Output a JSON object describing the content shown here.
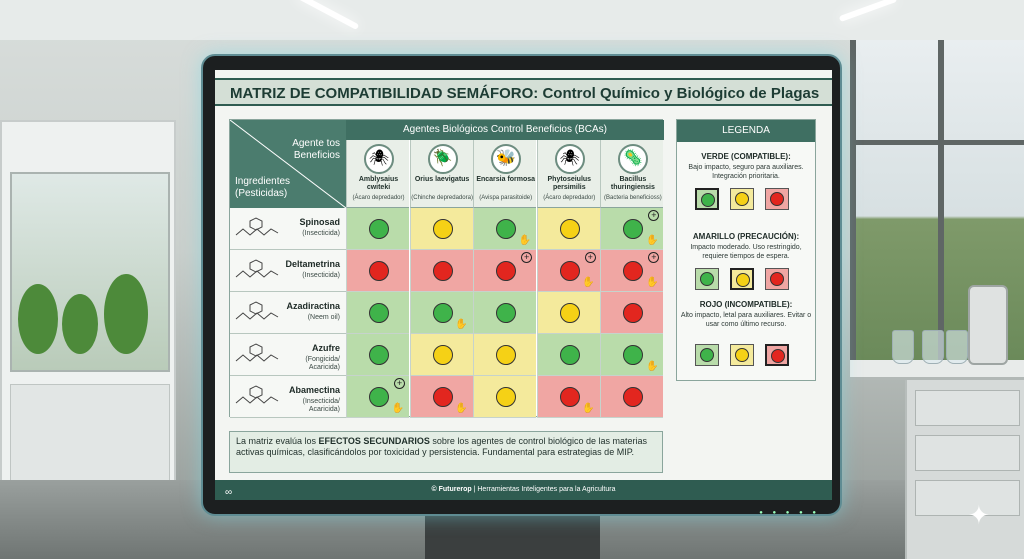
{
  "title": "MATRIZ DE COMPATIBILIDAD SEMÁFORO: Control Químico y Biológico de Plagas",
  "corner": {
    "top": "Agente tos Beneficios",
    "bottom": "Ingredientes (Pesticidas)"
  },
  "bca_header": "Agentes Biológicos Control Beneficios (BCAs)",
  "columns": [
    {
      "name": "Amblysaius cwiteki",
      "sub": "(Ácaro depredador)",
      "icon": "mite-icon"
    },
    {
      "name": "Orius laevigatus",
      "sub": "(Chinche depredadora)",
      "icon": "bug-icon"
    },
    {
      "name": "Encarsia formosa",
      "sub": "(Avispa parasitoide)",
      "icon": "wasp-icon"
    },
    {
      "name": "Phytoseiulus persimilis",
      "sub": "(Ácaro depredador)",
      "icon": "mite-icon"
    },
    {
      "name": "Bacillus thuringiensis",
      "sub": "(Bacteria beneficioss)",
      "icon": "bacteria-icon"
    }
  ],
  "rows": [
    {
      "name": "Spinosad",
      "sub": "(Insecticida)",
      "cells": [
        {
          "s": "green",
          "hand": false,
          "plus": false
        },
        {
          "s": "yellow",
          "hand": false,
          "plus": false
        },
        {
          "s": "green",
          "hand": true,
          "plus": false
        },
        {
          "s": "yellow",
          "hand": false,
          "plus": false
        },
        {
          "s": "green",
          "hand": true,
          "plus": true
        }
      ]
    },
    {
      "name": "Deltametrina",
      "sub": "(Insecticida)",
      "cells": [
        {
          "s": "red",
          "hand": false,
          "plus": false
        },
        {
          "s": "red",
          "hand": false,
          "plus": false
        },
        {
          "s": "red",
          "hand": false,
          "plus": true
        },
        {
          "s": "red",
          "hand": true,
          "plus": true
        },
        {
          "s": "red",
          "hand": true,
          "plus": true
        }
      ]
    },
    {
      "name": "Azadiractina",
      "sub": "(Neem oil)",
      "cells": [
        {
          "s": "green",
          "hand": false,
          "plus": false
        },
        {
          "s": "green",
          "hand": true,
          "plus": false
        },
        {
          "s": "green",
          "hand": false,
          "plus": false
        },
        {
          "s": "yellow",
          "hand": false,
          "plus": false
        },
        {
          "s": "red",
          "hand": false,
          "plus": false
        }
      ]
    },
    {
      "name": "Azufre",
      "sub": "(Fongicida/ Acaricida)",
      "cells": [
        {
          "s": "green",
          "hand": false,
          "plus": false
        },
        {
          "s": "yellow",
          "hand": false,
          "plus": false
        },
        {
          "s": "yellow",
          "hand": false,
          "plus": false
        },
        {
          "s": "green",
          "hand": false,
          "plus": false
        },
        {
          "s": "green",
          "hand": true,
          "plus": false
        }
      ]
    },
    {
      "name": "Abamectina",
      "sub": "(Insecticida/ Acaricida)",
      "cells": [
        {
          "s": "green",
          "hand": true,
          "plus": true
        },
        {
          "s": "red",
          "hand": true,
          "plus": false
        },
        {
          "s": "yellow",
          "hand": false,
          "plus": false
        },
        {
          "s": "red",
          "hand": true,
          "plus": false
        },
        {
          "s": "red",
          "hand": false,
          "plus": false
        }
      ]
    }
  ],
  "legend": {
    "header": "LEGENDA",
    "items": [
      {
        "title": "VERDE (COMPATIBLE):",
        "desc": "Bajo impacto, seguro para auxiliares. Integración prioritaria.",
        "highlight": "green"
      },
      {
        "title": "AMARILLO (PRECAUCIÓN):",
        "desc": "Impacto moderado. Uso restringido, requiere tiempos de espera.",
        "highlight": "yellow"
      },
      {
        "title": "ROJO (INCOMPATIBLE):",
        "desc": "Alto impacto, letal para auxiliares. Evitar o usar como último recurso.",
        "highlight": "red"
      }
    ]
  },
  "note": {
    "before": "La matriz evalúa los ",
    "bold": "EFECTOS SECUNDARIOS",
    "after": " sobre los agentes de control biológico de las materias activas químicas, clasificándolos por toxicidad y persistencia. Fundamental para estrategias de MIP."
  },
  "footer": {
    "brand": "© Futurerop",
    "tagline": " | Herramientas Inteligentes para la Agricultura"
  },
  "colors": {
    "green": "#3fb34a",
    "yellow": "#f5d116",
    "red": "#e2261f",
    "accent": "#3f6f62"
  }
}
